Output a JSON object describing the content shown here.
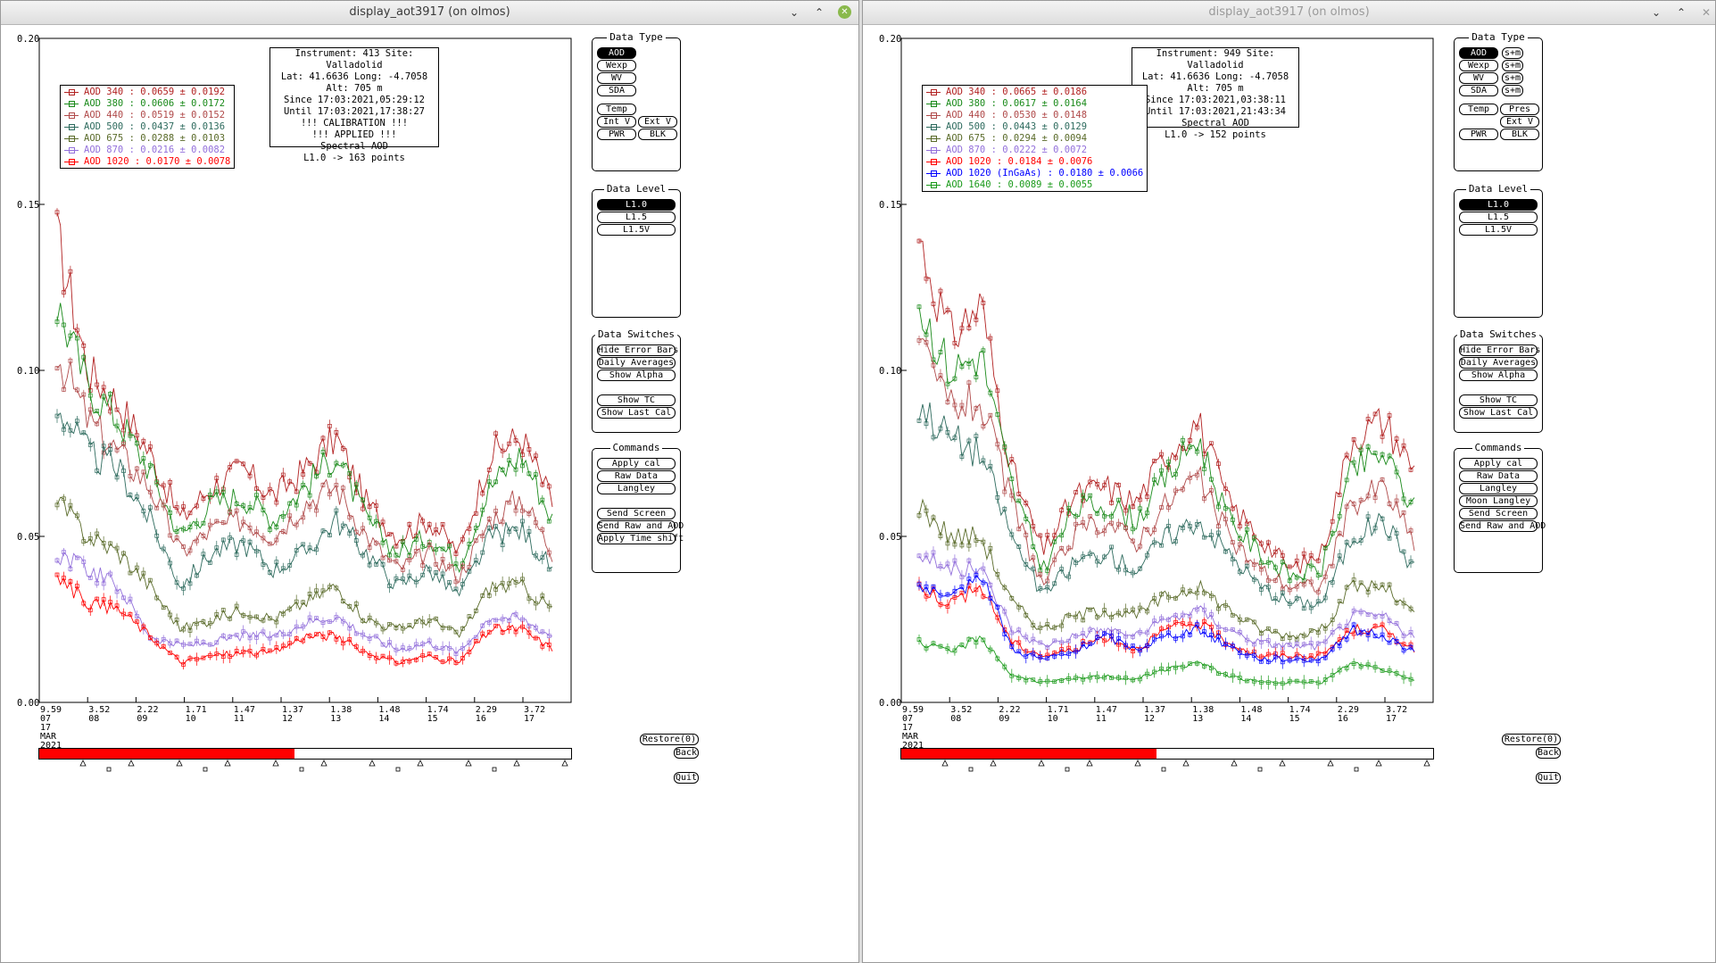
{
  "windows": [
    {
      "title": "display_aot3917 (on olmos)",
      "buttons": {
        "minimize": "⌄",
        "restore": "⌃",
        "close": "✕"
      },
      "y_axis": [
        "0.20",
        "0.15",
        "0.10",
        "0.05",
        "0.00"
      ],
      "x_ticks": [
        {
          "val": "9.59",
          "day": "07"
        },
        {
          "val": "3.52",
          "day": "08"
        },
        {
          "val": "2.22",
          "day": "09"
        },
        {
          "val": "1.71",
          "day": "10"
        },
        {
          "val": "1.47",
          "day": "11"
        },
        {
          "val": "1.37",
          "day": "12"
        },
        {
          "val": "1.38",
          "day": "13"
        },
        {
          "val": "1.48",
          "day": "14"
        },
        {
          "val": "1.74",
          "day": "15"
        },
        {
          "val": "2.29",
          "day": "16"
        },
        {
          "val": "3.72",
          "day": "17"
        }
      ],
      "x_extra": [
        "17",
        "MAR",
        "2021"
      ],
      "info": [
        "Instrument: 413 Site: Valladolid",
        "Lat: 41.6636 Long: -4.7058 Alt: 705 m",
        "Since 17:03:2021,05:29:12",
        "Until 17:03:2021,17:38:27",
        "!!! CALIBRATION !!!",
        "!!!   APPLIED   !!!",
        "Spectral AOD",
        "L1.0 -> 163 points"
      ],
      "legend": [
        {
          "label": "AOD 340   : 0.0659 ± 0.0192",
          "color": "#b22222"
        },
        {
          "label": "AOD 380   : 0.0606 ± 0.0172",
          "color": "#1a8a1a"
        },
        {
          "label": "AOD 440   : 0.0519 ± 0.0152",
          "color": "#b04a4a"
        },
        {
          "label": "AOD 500   : 0.0437 ± 0.0136",
          "color": "#2e6b5e"
        },
        {
          "label": "AOD 675   : 0.0288 ± 0.0103",
          "color": "#5a6b2a"
        },
        {
          "label": "AOD 870   : 0.0216 ± 0.0082",
          "color": "#9370db"
        },
        {
          "label": "AOD 1020  : 0.0170 ± 0.0078",
          "color": "#ff0000"
        }
      ],
      "data_type": {
        "title": "Data Type",
        "rows": [
          [
            "AOD"
          ],
          [
            "Wexp"
          ],
          [
            "WV"
          ],
          [
            "SDA"
          ],
          [],
          [
            "Temp"
          ],
          [
            "Int V",
            "Ext V"
          ],
          [
            "PWR",
            "BLK"
          ]
        ]
      },
      "data_level": {
        "title": "Data Level",
        "items": [
          "L1.0",
          "L1.5",
          "L1.5V"
        ]
      },
      "data_switches": {
        "title": "Data Switches",
        "items": [
          "Hide Error Bars",
          "Daily Averages",
          "Show Alpha",
          "",
          "Show TC",
          "Show Last Cal"
        ]
      },
      "commands": {
        "title": "Commands",
        "items": [
          "Apply cal",
          "Raw Data",
          "Langley",
          "",
          "Send Screen",
          "Send Raw and AOD",
          "Apply Time shift"
        ]
      },
      "bottom": {
        "restore": "Restore(0)",
        "back": "Back",
        "quit": "Quit"
      },
      "progress": 0.48
    },
    {
      "title": "display_aot3917 (on olmos)",
      "buttons": {
        "minimize": "⌄",
        "restore": "⌃",
        "close": "✕"
      },
      "y_axis": [
        "0.20",
        "0.15",
        "0.10",
        "0.05",
        "0.00"
      ],
      "x_ticks": [
        {
          "val": "9.59",
          "day": "07"
        },
        {
          "val": "3.52",
          "day": "08"
        },
        {
          "val": "2.22",
          "day": "09"
        },
        {
          "val": "1.71",
          "day": "10"
        },
        {
          "val": "1.47",
          "day": "11"
        },
        {
          "val": "1.37",
          "day": "12"
        },
        {
          "val": "1.38",
          "day": "13"
        },
        {
          "val": "1.48",
          "day": "14"
        },
        {
          "val": "1.74",
          "day": "15"
        },
        {
          "val": "2.29",
          "day": "16"
        },
        {
          "val": "3.72",
          "day": "17"
        }
      ],
      "x_extra": [
        "17",
        "MAR",
        "2021"
      ],
      "info": [
        "Instrument: 949 Site: Valladolid",
        "Lat: 41.6636 Long: -4.7058 Alt: 705 m",
        "Since 17:03:2021,03:38:11",
        "Until 17:03:2021,21:43:34",
        "Spectral AOD",
        "L1.0 -> 152 points"
      ],
      "legend": [
        {
          "label": "AOD 340   : 0.0665 ± 0.0186",
          "color": "#b22222"
        },
        {
          "label": "AOD 380   : 0.0617 ± 0.0164",
          "color": "#1a8a1a"
        },
        {
          "label": "AOD 440   : 0.0530 ± 0.0148",
          "color": "#b04a4a"
        },
        {
          "label": "AOD 500   : 0.0443 ± 0.0129",
          "color": "#2e6b5e"
        },
        {
          "label": "AOD 675   : 0.0294 ± 0.0094",
          "color": "#5a6b2a"
        },
        {
          "label": "AOD 870   : 0.0222 ± 0.0072",
          "color": "#9370db"
        },
        {
          "label": "AOD 1020  : 0.0184 ± 0.0076",
          "color": "#ff0000"
        },
        {
          "label": "AOD 1020 (InGaAs)  : 0.0180 ± 0.0066",
          "color": "#0000ff"
        },
        {
          "label": "AOD 1640  : 0.0089 ± 0.0055",
          "color": "#1a9a1a"
        }
      ],
      "data_type": {
        "title": "Data Type",
        "rows": [
          [
            "AOD",
            "s+m"
          ],
          [
            "Wexp",
            "s+m"
          ],
          [
            "WV",
            "s+m"
          ],
          [
            "SDA",
            "s+m"
          ],
          [],
          [
            "Temp",
            "Pres"
          ],
          [
            "",
            "Ext V"
          ],
          [
            "PWR",
            "BLK"
          ]
        ]
      },
      "data_level": {
        "title": "Data Level",
        "items": [
          "L1.0",
          "L1.5",
          "L1.5V"
        ]
      },
      "data_switches": {
        "title": "Data Switches",
        "items": [
          "Hide Error Bars",
          "Daily Averages",
          "Show Alpha",
          "",
          "Show TC",
          "Show Last Cal"
        ]
      },
      "commands": {
        "title": "Commands",
        "items": [
          "Apply cal",
          "Raw Data",
          "Langley",
          "Moon Langley",
          "Send Screen",
          "Send Raw and AOD"
        ]
      },
      "bottom": {
        "restore": "Restore(0)",
        "back": "Back",
        "quit": "Quit"
      },
      "progress": 0.48
    }
  ],
  "chart_data": [
    {
      "type": "line",
      "ylim": [
        0,
        0.2
      ],
      "x_tick_values": [
        "9.59",
        "3.52",
        "2.22",
        "1.71",
        "1.47",
        "1.37",
        "1.38",
        "1.48",
        "1.74",
        "2.29",
        "3.72"
      ],
      "series": [
        {
          "name": "AOD 340",
          "anchors": [
            0.14,
            0.1,
            0.09,
            0.075,
            0.055,
            0.065,
            0.07,
            0.062,
            0.07,
            0.08,
            0.06,
            0.05,
            0.055,
            0.045,
            0.075,
            0.08,
            0.06
          ]
        },
        {
          "name": "AOD 380",
          "anchors": [
            0.12,
            0.095,
            0.085,
            0.07,
            0.05,
            0.06,
            0.062,
            0.055,
            0.065,
            0.075,
            0.055,
            0.045,
            0.05,
            0.042,
            0.065,
            0.075,
            0.055
          ]
        },
        {
          "name": "AOD 440",
          "anchors": [
            0.105,
            0.085,
            0.075,
            0.065,
            0.045,
            0.052,
            0.055,
            0.05,
            0.06,
            0.065,
            0.05,
            0.04,
            0.045,
            0.038,
            0.055,
            0.062,
            0.045
          ]
        },
        {
          "name": "AOD 500",
          "anchors": [
            0.09,
            0.075,
            0.07,
            0.055,
            0.035,
            0.045,
            0.048,
            0.04,
            0.045,
            0.055,
            0.045,
            0.035,
            0.04,
            0.032,
            0.05,
            0.052,
            0.04
          ]
        },
        {
          "name": "AOD 675",
          "anchors": [
            0.06,
            0.05,
            0.045,
            0.035,
            0.022,
            0.025,
            0.028,
            0.025,
            0.03,
            0.035,
            0.025,
            0.022,
            0.025,
            0.02,
            0.035,
            0.035,
            0.028
          ]
        },
        {
          "name": "AOD 870",
          "anchors": [
            0.045,
            0.04,
            0.035,
            0.02,
            0.017,
            0.018,
            0.02,
            0.02,
            0.024,
            0.026,
            0.02,
            0.016,
            0.018,
            0.015,
            0.026,
            0.025,
            0.02
          ]
        },
        {
          "name": "AOD 1020",
          "anchors": [
            0.038,
            0.03,
            0.028,
            0.02,
            0.012,
            0.014,
            0.015,
            0.015,
            0.02,
            0.02,
            0.015,
            0.012,
            0.014,
            0.012,
            0.022,
            0.022,
            0.016
          ]
        }
      ]
    },
    {
      "type": "line",
      "ylim": [
        0,
        0.2
      ],
      "x_tick_values": [
        "9.59",
        "3.52",
        "2.22",
        "1.71",
        "1.47",
        "1.37",
        "1.38",
        "1.48",
        "1.74",
        "2.29",
        "3.72"
      ],
      "series": [
        {
          "name": "AOD 340",
          "anchors": [
            0.14,
            0.11,
            0.12,
            0.07,
            0.045,
            0.062,
            0.065,
            0.06,
            0.075,
            0.085,
            0.06,
            0.05,
            0.04,
            0.045,
            0.08,
            0.085,
            0.07
          ]
        },
        {
          "name": "AOD 380",
          "anchors": [
            0.12,
            0.1,
            0.105,
            0.065,
            0.04,
            0.058,
            0.06,
            0.055,
            0.068,
            0.08,
            0.055,
            0.045,
            0.038,
            0.04,
            0.07,
            0.075,
            0.058
          ]
        },
        {
          "name": "AOD 440",
          "anchors": [
            0.105,
            0.09,
            0.09,
            0.06,
            0.035,
            0.05,
            0.055,
            0.048,
            0.06,
            0.068,
            0.05,
            0.04,
            0.035,
            0.035,
            0.06,
            0.065,
            0.048
          ]
        },
        {
          "name": "AOD 500",
          "anchors": [
            0.09,
            0.08,
            0.075,
            0.05,
            0.032,
            0.042,
            0.045,
            0.04,
            0.05,
            0.055,
            0.045,
            0.035,
            0.03,
            0.03,
            0.05,
            0.055,
            0.04
          ]
        },
        {
          "name": "AOD 675",
          "anchors": [
            0.06,
            0.05,
            0.05,
            0.03,
            0.022,
            0.026,
            0.028,
            0.026,
            0.032,
            0.035,
            0.028,
            0.022,
            0.02,
            0.022,
            0.035,
            0.035,
            0.026
          ]
        },
        {
          "name": "AOD 870",
          "anchors": [
            0.045,
            0.04,
            0.04,
            0.022,
            0.017,
            0.02,
            0.022,
            0.02,
            0.025,
            0.028,
            0.022,
            0.018,
            0.017,
            0.017,
            0.026,
            0.026,
            0.019
          ]
        },
        {
          "name": "AOD 1020",
          "anchors": [
            0.035,
            0.03,
            0.035,
            0.018,
            0.014,
            0.016,
            0.02,
            0.016,
            0.022,
            0.024,
            0.018,
            0.014,
            0.014,
            0.014,
            0.022,
            0.022,
            0.016
          ]
        },
        {
          "name": "AOD 1020 (InGaAs)",
          "anchors": [
            0.035,
            0.03,
            0.04,
            0.016,
            0.013,
            0.015,
            0.02,
            0.016,
            0.02,
            0.022,
            0.017,
            0.013,
            0.013,
            0.013,
            0.022,
            0.02,
            0.015
          ]
        },
        {
          "name": "AOD 1640",
          "anchors": [
            0.018,
            0.015,
            0.02,
            0.008,
            0.006,
            0.007,
            0.008,
            0.007,
            0.01,
            0.012,
            0.008,
            0.006,
            0.006,
            0.006,
            0.012,
            0.01,
            0.007
          ]
        }
      ]
    }
  ]
}
